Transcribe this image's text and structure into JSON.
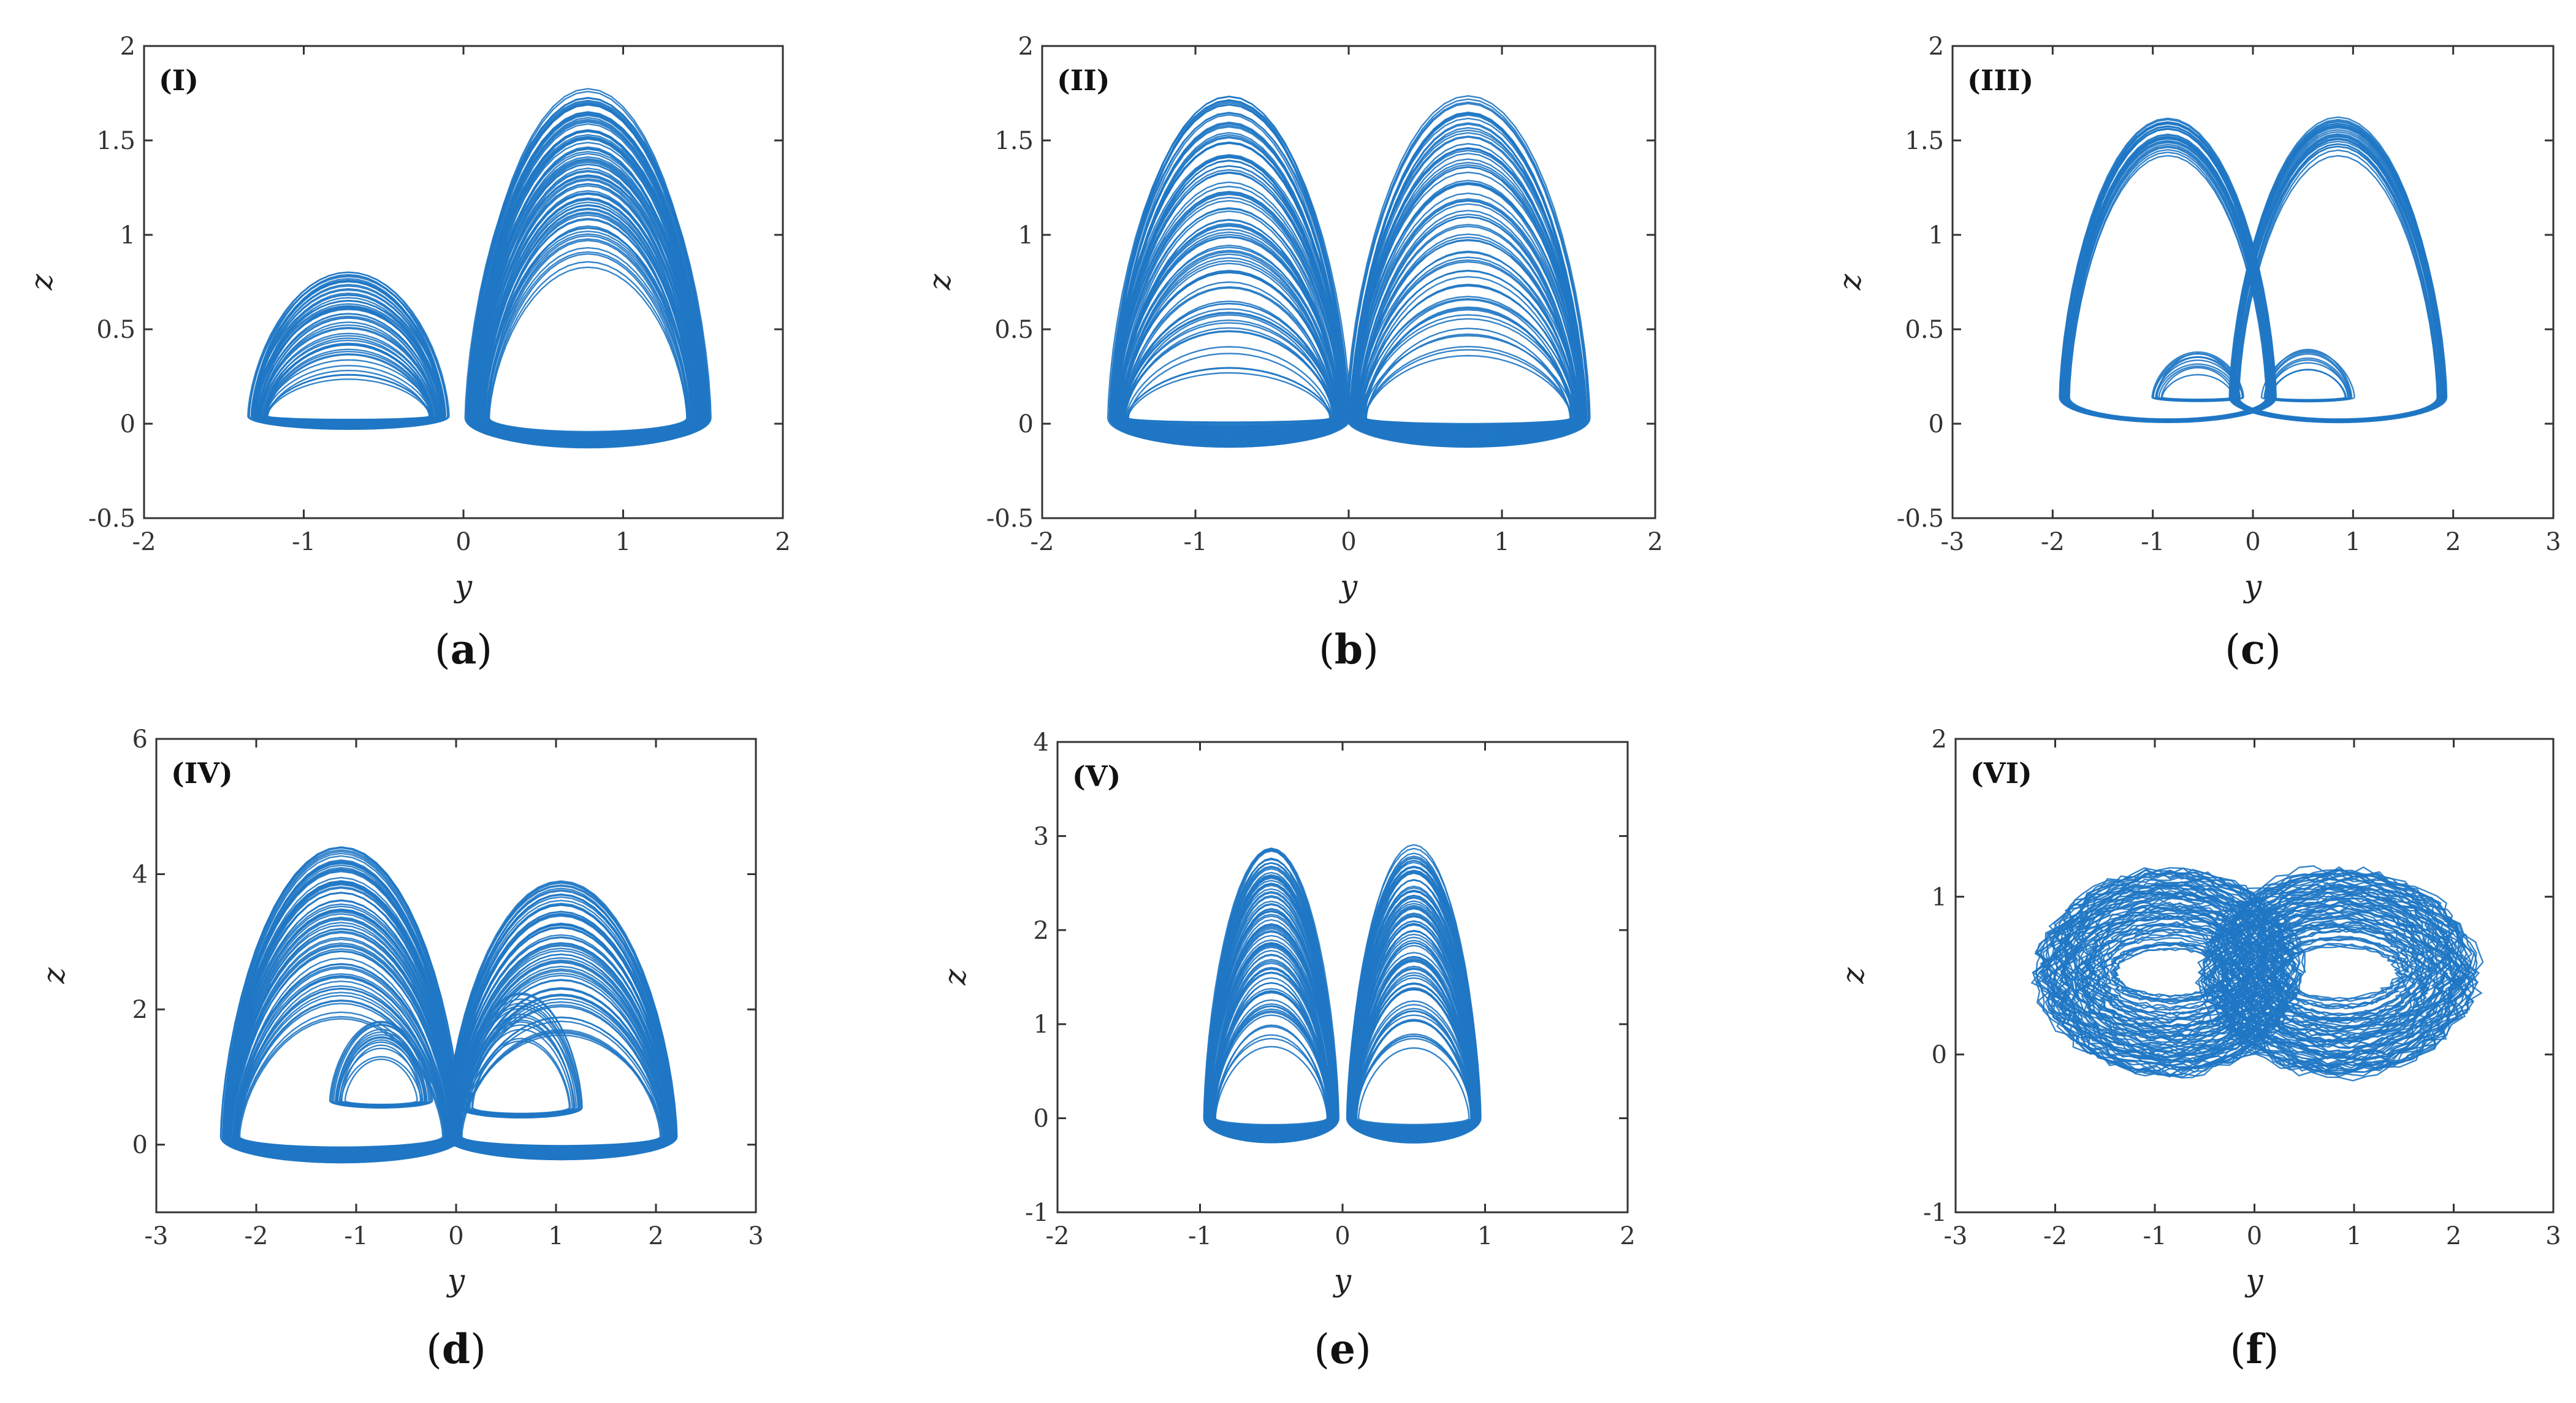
{
  "chart_data": [
    {
      "type": "line",
      "panel_label": "(I)",
      "caption": "a",
      "xlabel": "y",
      "ylabel": "z",
      "xlim": [
        -2,
        2
      ],
      "ylim": [
        -0.5,
        2
      ],
      "xticks": [
        "-2",
        "-1",
        "0",
        "1",
        "2"
      ],
      "yticks": [
        "-0.5",
        "0",
        "0.5",
        "1",
        "1.5",
        "2"
      ],
      "series_color": "#1f77c4",
      "lobes": [
        {
          "cx": -0.72,
          "w_range": [
            0.45,
            0.62
          ],
          "base": 0.04,
          "h_range": [
            0.18,
            0.78
          ],
          "n": 55
        },
        {
          "cx": 0.78,
          "w_range": [
            0.55,
            0.76
          ],
          "base": 0.03,
          "h_range": [
            0.75,
            1.72
          ],
          "n": 90
        }
      ]
    },
    {
      "type": "line",
      "panel_label": "(II)",
      "caption": "b",
      "xlabel": "y",
      "ylabel": "z",
      "xlim": [
        -2,
        2
      ],
      "ylim": [
        -0.5,
        2
      ],
      "xticks": [
        "-2",
        "-1",
        "0",
        "1",
        "2"
      ],
      "yticks": [
        "-0.5",
        "0",
        "0.5",
        "1",
        "1.5",
        "2"
      ],
      "series_color": "#1f77c4",
      "lobes": [
        {
          "cx": -0.78,
          "w_range": [
            0.62,
            0.78
          ],
          "base": 0.03,
          "h_range": [
            0.2,
            1.72
          ],
          "n": 90
        },
        {
          "cx": 0.78,
          "w_range": [
            0.62,
            0.78
          ],
          "base": 0.03,
          "h_range": [
            0.2,
            1.72
          ],
          "n": 75
        }
      ]
    },
    {
      "type": "line",
      "panel_label": "(III)",
      "caption": "c",
      "xlabel": "y",
      "ylabel": "z",
      "xlim": [
        -3,
        3
      ],
      "ylim": [
        -0.5,
        2
      ],
      "xticks": [
        "-3",
        "-2",
        "-1",
        "0",
        "1",
        "2",
        "3"
      ],
      "yticks": [
        "-0.5",
        "0",
        "0.5",
        "1",
        "1.5",
        "2"
      ],
      "series_color": "#1f77c4",
      "lobes": [
        {
          "cx": -0.85,
          "w_range": [
            0.95,
            1.08
          ],
          "base": 0.14,
          "h_range": [
            1.28,
            1.47
          ],
          "n": 30
        },
        {
          "cx": 0.85,
          "w_range": [
            0.95,
            1.08
          ],
          "base": 0.14,
          "h_range": [
            1.28,
            1.47
          ],
          "n": 30
        },
        {
          "cx": -0.55,
          "w_range": [
            0.32,
            0.45
          ],
          "base": 0.14,
          "h_range": [
            0.12,
            0.26
          ],
          "n": 10
        },
        {
          "cx": 0.55,
          "w_range": [
            0.32,
            0.45
          ],
          "base": 0.14,
          "h_range": [
            0.12,
            0.26
          ],
          "n": 10
        }
      ]
    },
    {
      "type": "line",
      "panel_label": "(IV)",
      "caption": "d",
      "xlabel": "y",
      "ylabel": "z",
      "xlim": [
        -3,
        3
      ],
      "ylim": [
        -1,
        6
      ],
      "xticks": [
        "-3",
        "-2",
        "-1",
        "0",
        "1",
        "2",
        "3"
      ],
      "yticks": [
        "0",
        "2",
        "4",
        "6"
      ],
      "series_color": "#1f77c4",
      "lobes": [
        {
          "cx": -1.15,
          "w_range": [
            0.95,
            1.2
          ],
          "base": 0.12,
          "h_range": [
            1.6,
            4.3
          ],
          "n": 80
        },
        {
          "cx": 1.05,
          "w_range": [
            0.95,
            1.15
          ],
          "base": 0.12,
          "h_range": [
            1.4,
            3.8
          ],
          "n": 70
        },
        {
          "cx": -0.75,
          "w_range": [
            0.32,
            0.5
          ],
          "base": 0.65,
          "h_range": [
            0.6,
            1.2
          ],
          "n": 15
        },
        {
          "cx": 0.65,
          "w_range": [
            0.4,
            0.62
          ],
          "base": 0.55,
          "h_range": [
            0.8,
            1.7
          ],
          "n": 15
        }
      ]
    },
    {
      "type": "line",
      "panel_label": "(V)",
      "caption": "e",
      "xlabel": "y",
      "ylabel": "z",
      "xlim": [
        -2,
        2
      ],
      "ylim": [
        -1,
        4
      ],
      "xticks": [
        "-2",
        "-1",
        "0",
        "1",
        "2"
      ],
      "yticks": [
        "-1",
        "0",
        "1",
        "2",
        "3",
        "4"
      ],
      "series_color": "#1f77c4",
      "lobes": [
        {
          "cx": -0.5,
          "w_range": [
            0.38,
            0.46
          ],
          "base": 0.0,
          "h_range": [
            0.7,
            2.87
          ],
          "n": 90
        },
        {
          "cx": 0.5,
          "w_range": [
            0.38,
            0.46
          ],
          "base": 0.0,
          "h_range": [
            0.7,
            2.87
          ],
          "n": 90
        }
      ]
    },
    {
      "type": "line",
      "panel_label": "(VI)",
      "caption": "f",
      "xlabel": "y",
      "ylabel": "z",
      "xlim": [
        -3,
        3
      ],
      "ylim": [
        -1,
        2
      ],
      "xticks": [
        "-3",
        "-2",
        "-1",
        "0",
        "1",
        "2",
        "3"
      ],
      "yticks": [
        "-1",
        "0",
        "1",
        "2"
      ],
      "series_color": "#1f77c4",
      "lobes": [
        {
          "cx": -0.85,
          "w_range": [
            0.25,
            1.4
          ],
          "base": 0.1,
          "h_range": [
            0.2,
            1.1
          ],
          "n": 70,
          "kind": "ellipse",
          "cy": 0.52
        },
        {
          "cx": 0.85,
          "w_range": [
            0.25,
            1.45
          ],
          "base": 0.1,
          "h_range": [
            0.2,
            1.1
          ],
          "n": 70,
          "kind": "ellipse",
          "cy": 0.52
        }
      ]
    }
  ]
}
